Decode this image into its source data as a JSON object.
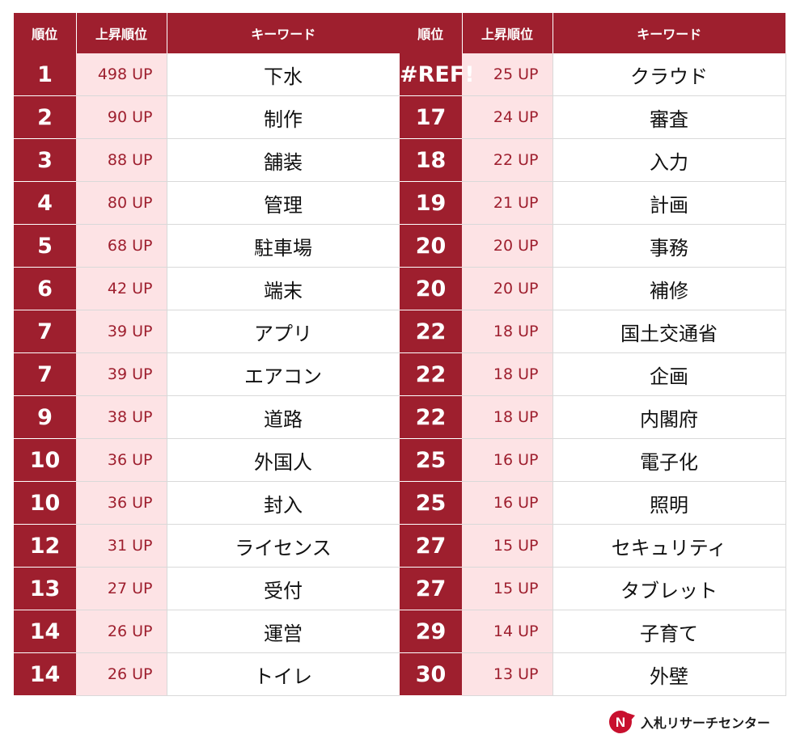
{
  "headers": {
    "rank": "順位",
    "rise": "上昇順位",
    "keyword": "キーワード"
  },
  "left_rows": [
    {
      "rank": "1",
      "rise": "498 UP",
      "keyword": "下水"
    },
    {
      "rank": "2",
      "rise": "90 UP",
      "keyword": "制作"
    },
    {
      "rank": "3",
      "rise": "88 UP",
      "keyword": "舗装"
    },
    {
      "rank": "4",
      "rise": "80 UP",
      "keyword": "管理"
    },
    {
      "rank": "5",
      "rise": "68 UP",
      "keyword": "駐車場"
    },
    {
      "rank": "6",
      "rise": "42 UP",
      "keyword": "端末"
    },
    {
      "rank": "7",
      "rise": "39 UP",
      "keyword": "アプリ"
    },
    {
      "rank": "7",
      "rise": "39 UP",
      "keyword": "エアコン"
    },
    {
      "rank": "9",
      "rise": "38 UP",
      "keyword": "道路"
    },
    {
      "rank": "10",
      "rise": "36 UP",
      "keyword": "外国人"
    },
    {
      "rank": "10",
      "rise": "36 UP",
      "keyword": "封入"
    },
    {
      "rank": "12",
      "rise": "31 UP",
      "keyword": "ライセンス"
    },
    {
      "rank": "13",
      "rise": "27 UP",
      "keyword": "受付"
    },
    {
      "rank": "14",
      "rise": "26 UP",
      "keyword": "運営"
    },
    {
      "rank": "14",
      "rise": "26 UP",
      "keyword": "トイレ"
    }
  ],
  "right_rows": [
    {
      "rank": "#REF!",
      "rise": "25 UP",
      "keyword": "クラウド"
    },
    {
      "rank": "17",
      "rise": "24 UP",
      "keyword": "審査"
    },
    {
      "rank": "18",
      "rise": "22 UP",
      "keyword": "入力"
    },
    {
      "rank": "19",
      "rise": "21 UP",
      "keyword": "計画"
    },
    {
      "rank": "20",
      "rise": "20 UP",
      "keyword": "事務"
    },
    {
      "rank": "20",
      "rise": "20 UP",
      "keyword": "補修"
    },
    {
      "rank": "22",
      "rise": "18 UP",
      "keyword": "国土交通省"
    },
    {
      "rank": "22",
      "rise": "18 UP",
      "keyword": "企画"
    },
    {
      "rank": "22",
      "rise": "18 UP",
      "keyword": "内閣府"
    },
    {
      "rank": "25",
      "rise": "16 UP",
      "keyword": "電子化"
    },
    {
      "rank": "25",
      "rise": "16 UP",
      "keyword": "照明"
    },
    {
      "rank": "27",
      "rise": "15 UP",
      "keyword": "セキュリティ"
    },
    {
      "rank": "27",
      "rise": "15 UP",
      "keyword": "タブレット"
    },
    {
      "rank": "29",
      "rise": "14 UP",
      "keyword": "子育て"
    },
    {
      "rank": "30",
      "rise": "13 UP",
      "keyword": "外壁"
    }
  ],
  "logo": {
    "text": "入札リサーチセンター",
    "mark_letter": "N",
    "icon": "arrow-n-logo-icon"
  },
  "colors": {
    "header_bg": "#9e1f2e",
    "rise_bg": "#fde3e5",
    "rise_text": "#9e1f2e"
  }
}
